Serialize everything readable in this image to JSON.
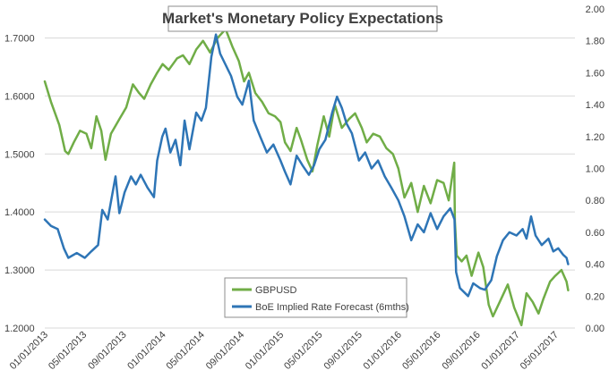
{
  "chart_data": {
    "type": "line",
    "title": "Market's Monetary Policy Expectations",
    "x_ticks": [
      "01/01/2013",
      "05/01/2013",
      "09/01/2013",
      "01/01/2014",
      "05/01/2014",
      "09/01/2014",
      "01/01/2015",
      "05/01/2015",
      "09/01/2015",
      "01/01/2016",
      "05/01/2016",
      "09/01/2016",
      "01/01/2017",
      "05/01/2017"
    ],
    "y_left": {
      "ticks": [
        "1.2000",
        "1.3000",
        "1.4000",
        "1.5000",
        "1.6000",
        "1.7000"
      ],
      "min": 1.2,
      "max": 1.75
    },
    "y_right": {
      "ticks": [
        "0.00",
        "0.20",
        "0.40",
        "0.60",
        "0.80",
        "1.00",
        "1.20",
        "1.40",
        "1.60",
        "1.80",
        "2.00"
      ],
      "min": 0.0,
      "max": 2.0
    },
    "grid": "horizontal",
    "legend_position": "bottom-center",
    "series": [
      {
        "name": "GBPUSD",
        "axis": "left",
        "color": "#70ad47",
        "points": [
          [
            "2013-01-01",
            1.625
          ],
          [
            "2013-01-20",
            1.59
          ],
          [
            "2013-02-15",
            1.55
          ],
          [
            "2013-03-05",
            1.505
          ],
          [
            "2013-03-15",
            1.5
          ],
          [
            "2013-04-01",
            1.52
          ],
          [
            "2013-04-20",
            1.54
          ],
          [
            "2013-05-10",
            1.535
          ],
          [
            "2013-05-25",
            1.51
          ],
          [
            "2013-06-10",
            1.565
          ],
          [
            "2013-06-25",
            1.54
          ],
          [
            "2013-07-08",
            1.49
          ],
          [
            "2013-07-25",
            1.535
          ],
          [
            "2013-08-20",
            1.56
          ],
          [
            "2013-09-10",
            1.58
          ],
          [
            "2013-10-01",
            1.62
          ],
          [
            "2013-10-20",
            1.605
          ],
          [
            "2013-11-05",
            1.595
          ],
          [
            "2013-11-25",
            1.62
          ],
          [
            "2013-12-15",
            1.64
          ],
          [
            "2014-01-01",
            1.655
          ],
          [
            "2014-01-20",
            1.645
          ],
          [
            "2014-02-15",
            1.665
          ],
          [
            "2014-03-05",
            1.67
          ],
          [
            "2014-03-25",
            1.655
          ],
          [
            "2014-04-15",
            1.68
          ],
          [
            "2014-05-06",
            1.695
          ],
          [
            "2014-05-28",
            1.675
          ],
          [
            "2014-06-20",
            1.7
          ],
          [
            "2014-07-15",
            1.715
          ],
          [
            "2014-08-05",
            1.685
          ],
          [
            "2014-08-25",
            1.66
          ],
          [
            "2014-09-10",
            1.625
          ],
          [
            "2014-09-25",
            1.64
          ],
          [
            "2014-10-15",
            1.605
          ],
          [
            "2014-11-05",
            1.59
          ],
          [
            "2014-11-25",
            1.57
          ],
          [
            "2014-12-15",
            1.565
          ],
          [
            "2015-01-01",
            1.555
          ],
          [
            "2015-01-15",
            1.52
          ],
          [
            "2015-02-01",
            1.505
          ],
          [
            "2015-02-20",
            1.545
          ],
          [
            "2015-03-05",
            1.525
          ],
          [
            "2015-03-25",
            1.49
          ],
          [
            "2015-04-10",
            1.47
          ],
          [
            "2015-04-25",
            1.515
          ],
          [
            "2015-05-15",
            1.565
          ],
          [
            "2015-06-01",
            1.53
          ],
          [
            "2015-06-18",
            1.585
          ],
          [
            "2015-07-10",
            1.545
          ],
          [
            "2015-08-01",
            1.56
          ],
          [
            "2015-08-20",
            1.57
          ],
          [
            "2015-09-10",
            1.545
          ],
          [
            "2015-09-25",
            1.52
          ],
          [
            "2015-10-15",
            1.535
          ],
          [
            "2015-11-05",
            1.53
          ],
          [
            "2015-11-25",
            1.51
          ],
          [
            "2015-12-15",
            1.5
          ],
          [
            "2016-01-01",
            1.475
          ],
          [
            "2016-01-20",
            1.425
          ],
          [
            "2016-02-10",
            1.45
          ],
          [
            "2016-03-01",
            1.4
          ],
          [
            "2016-03-20",
            1.445
          ],
          [
            "2016-04-10",
            1.415
          ],
          [
            "2016-04-30",
            1.455
          ],
          [
            "2016-05-20",
            1.45
          ],
          [
            "2016-06-05",
            1.42
          ],
          [
            "2016-06-22",
            1.485
          ],
          [
            "2016-06-24",
            1.385
          ],
          [
            "2016-06-30",
            1.325
          ],
          [
            "2016-07-15",
            1.315
          ],
          [
            "2016-07-30",
            1.325
          ],
          [
            "2016-08-15",
            1.29
          ],
          [
            "2016-09-05",
            1.33
          ],
          [
            "2016-09-20",
            1.305
          ],
          [
            "2016-10-07",
            1.24
          ],
          [
            "2016-10-20",
            1.22
          ],
          [
            "2016-11-10",
            1.245
          ],
          [
            "2016-12-05",
            1.275
          ],
          [
            "2016-12-25",
            1.235
          ],
          [
            "2017-01-16",
            1.205
          ],
          [
            "2017-02-01",
            1.26
          ],
          [
            "2017-02-20",
            1.245
          ],
          [
            "2017-03-10",
            1.225
          ],
          [
            "2017-03-25",
            1.25
          ],
          [
            "2017-04-15",
            1.28
          ],
          [
            "2017-05-01",
            1.29
          ],
          [
            "2017-05-20",
            1.3
          ],
          [
            "2017-06-05",
            1.28
          ],
          [
            "2017-06-10",
            1.265
          ]
        ]
      },
      {
        "name": "BoE Implied Rate Forecast (6mths)",
        "axis": "right",
        "color": "#2e75b6",
        "points": [
          [
            "2013-01-01",
            0.68
          ],
          [
            "2013-01-20",
            0.64
          ],
          [
            "2013-02-10",
            0.62
          ],
          [
            "2013-03-01",
            0.5
          ],
          [
            "2013-03-15",
            0.44
          ],
          [
            "2013-04-10",
            0.47
          ],
          [
            "2013-05-05",
            0.44
          ],
          [
            "2013-05-25",
            0.48
          ],
          [
            "2013-06-15",
            0.52
          ],
          [
            "2013-06-28",
            0.74
          ],
          [
            "2013-07-15",
            0.68
          ],
          [
            "2013-08-08",
            0.95
          ],
          [
            "2013-08-20",
            0.72
          ],
          [
            "2013-09-05",
            0.85
          ],
          [
            "2013-09-25",
            0.95
          ],
          [
            "2013-10-10",
            0.9
          ],
          [
            "2013-10-25",
            0.96
          ],
          [
            "2013-11-15",
            0.88
          ],
          [
            "2013-12-05",
            0.82
          ],
          [
            "2013-12-15",
            1.05
          ],
          [
            "2013-12-31",
            1.2
          ],
          [
            "2014-01-10",
            1.25
          ],
          [
            "2014-01-25",
            1.1
          ],
          [
            "2014-02-10",
            1.18
          ],
          [
            "2014-02-25",
            1.02
          ],
          [
            "2014-03-10",
            1.3
          ],
          [
            "2014-03-25",
            1.12
          ],
          [
            "2014-04-15",
            1.35
          ],
          [
            "2014-05-01",
            1.3
          ],
          [
            "2014-05-15",
            1.38
          ],
          [
            "2014-06-01",
            1.7
          ],
          [
            "2014-06-15",
            1.84
          ],
          [
            "2014-06-28",
            1.72
          ],
          [
            "2014-07-15",
            1.65
          ],
          [
            "2014-08-01",
            1.58
          ],
          [
            "2014-08-20",
            1.45
          ],
          [
            "2014-09-05",
            1.4
          ],
          [
            "2014-09-25",
            1.55
          ],
          [
            "2014-10-10",
            1.3
          ],
          [
            "2014-10-30",
            1.2
          ],
          [
            "2014-11-20",
            1.1
          ],
          [
            "2014-12-10",
            1.15
          ],
          [
            "2015-01-01",
            1.05
          ],
          [
            "2015-01-15",
            0.98
          ],
          [
            "2015-02-01",
            0.9
          ],
          [
            "2015-02-20",
            1.08
          ],
          [
            "2015-03-10",
            1.02
          ],
          [
            "2015-03-30",
            0.96
          ],
          [
            "2015-04-15",
            1.02
          ],
          [
            "2015-05-01",
            1.12
          ],
          [
            "2015-05-20",
            1.18
          ],
          [
            "2015-06-10",
            1.35
          ],
          [
            "2015-06-25",
            1.45
          ],
          [
            "2015-07-10",
            1.38
          ],
          [
            "2015-07-25",
            1.28
          ],
          [
            "2015-08-10",
            1.22
          ],
          [
            "2015-09-01",
            1.05
          ],
          [
            "2015-09-20",
            1.1
          ],
          [
            "2015-10-10",
            1.0
          ],
          [
            "2015-10-30",
            1.05
          ],
          [
            "2015-11-20",
            0.95
          ],
          [
            "2015-12-10",
            0.88
          ],
          [
            "2016-01-01",
            0.8
          ],
          [
            "2016-01-20",
            0.7
          ],
          [
            "2016-02-10",
            0.55
          ],
          [
            "2016-03-01",
            0.65
          ],
          [
            "2016-03-20",
            0.6
          ],
          [
            "2016-04-10",
            0.72
          ],
          [
            "2016-04-30",
            0.62
          ],
          [
            "2016-05-20",
            0.7
          ],
          [
            "2016-06-10",
            0.75
          ],
          [
            "2016-06-23",
            0.68
          ],
          [
            "2016-06-28",
            0.35
          ],
          [
            "2016-07-10",
            0.25
          ],
          [
            "2016-08-04",
            0.2
          ],
          [
            "2016-08-20",
            0.28
          ],
          [
            "2016-09-10",
            0.25
          ],
          [
            "2016-09-25",
            0.24
          ],
          [
            "2016-10-15",
            0.3
          ],
          [
            "2016-11-01",
            0.45
          ],
          [
            "2016-11-20",
            0.55
          ],
          [
            "2016-12-10",
            0.6
          ],
          [
            "2017-01-01",
            0.58
          ],
          [
            "2017-01-20",
            0.62
          ],
          [
            "2017-02-01",
            0.56
          ],
          [
            "2017-02-15",
            0.7
          ],
          [
            "2017-03-01",
            0.58
          ],
          [
            "2017-03-20",
            0.52
          ],
          [
            "2017-04-10",
            0.56
          ],
          [
            "2017-04-25",
            0.48
          ],
          [
            "2017-05-10",
            0.5
          ],
          [
            "2017-05-25",
            0.46
          ],
          [
            "2017-06-05",
            0.44
          ],
          [
            "2017-06-10",
            0.4
          ]
        ]
      }
    ]
  }
}
